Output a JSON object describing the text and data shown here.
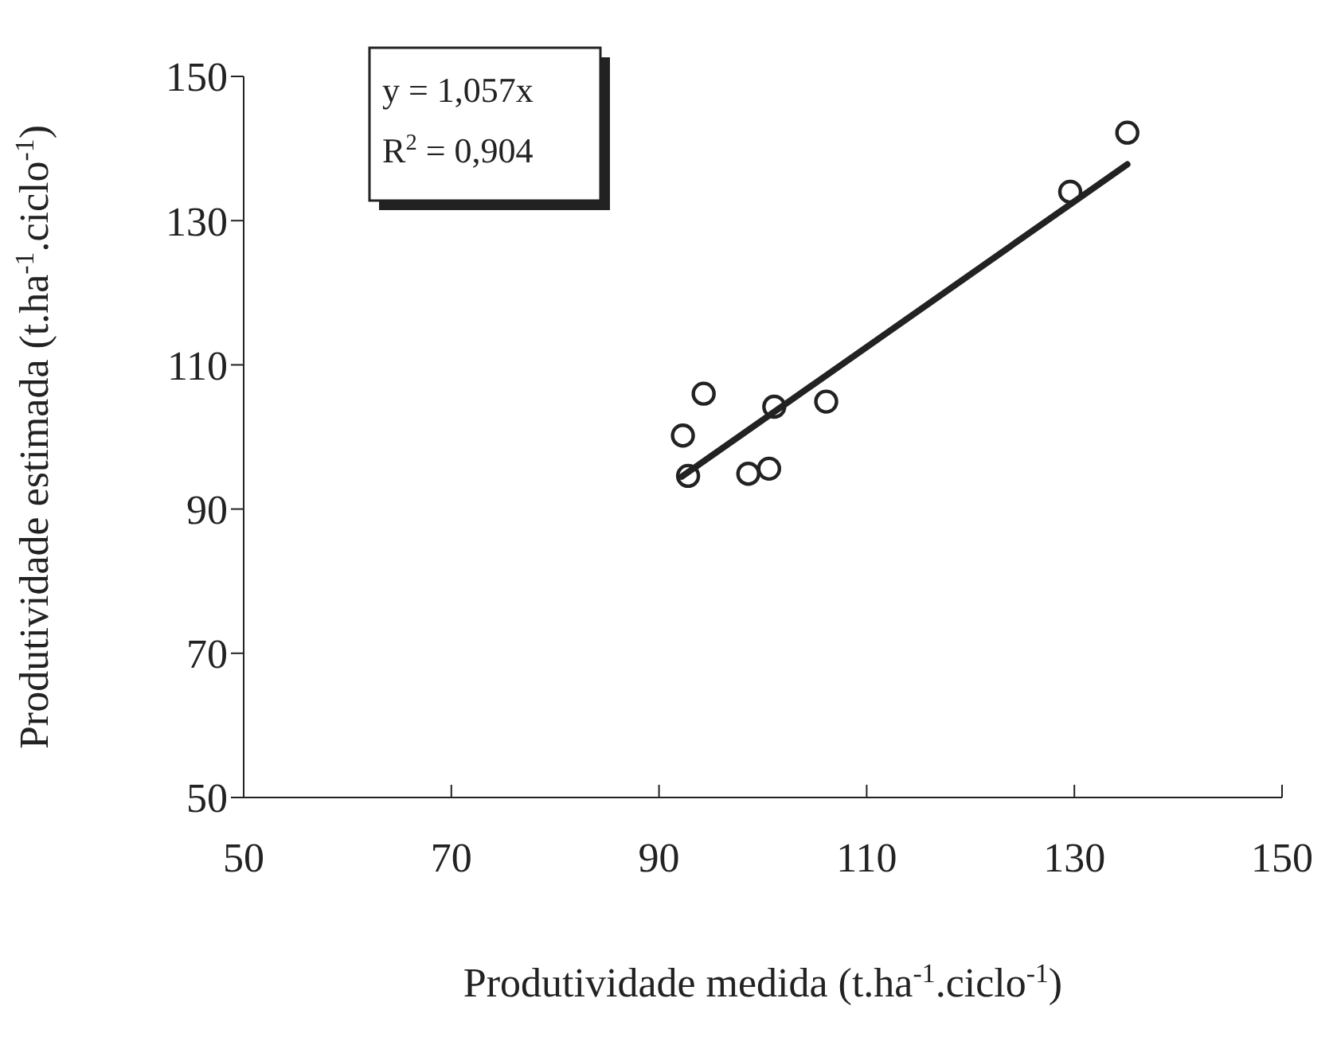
{
  "chart_data": {
    "type": "scatter",
    "xlabel": "Produtividade medida (t.ha$^{-1}$.ciclo$^{-1}$)",
    "ylabel": "Produtividade estimada (t.ha$^{-1}$.ciclo$^{-1}$)",
    "xlim": [
      50,
      150
    ],
    "xticks": [
      50,
      70,
      90,
      110,
      130,
      150
    ],
    "ylim": [
      50,
      150
    ],
    "yticks": [
      50,
      70,
      90,
      110,
      130,
      150
    ],
    "grid": false,
    "legend": false,
    "marker": "circle",
    "annotations": [
      "y = 1,057x",
      "R$^{2}$ = 0,904"
    ],
    "series": [
      {
        "x": [
          92.3,
          92.8,
          94.3,
          98.6,
          100.6,
          101.1,
          106.1,
          129.6,
          135.1
        ],
        "values": [
          100.2,
          94.6,
          106.0,
          94.9,
          95.6,
          104.2,
          104.9,
          134.0,
          142.2
        ],
        "color": "#222222"
      },
      {
        "type": "line",
        "marker": "none",
        "x": [
          92.2,
          135.1
        ],
        "values": [
          94.5,
          137.8
        ],
        "color": "#222222"
      }
    ]
  }
}
